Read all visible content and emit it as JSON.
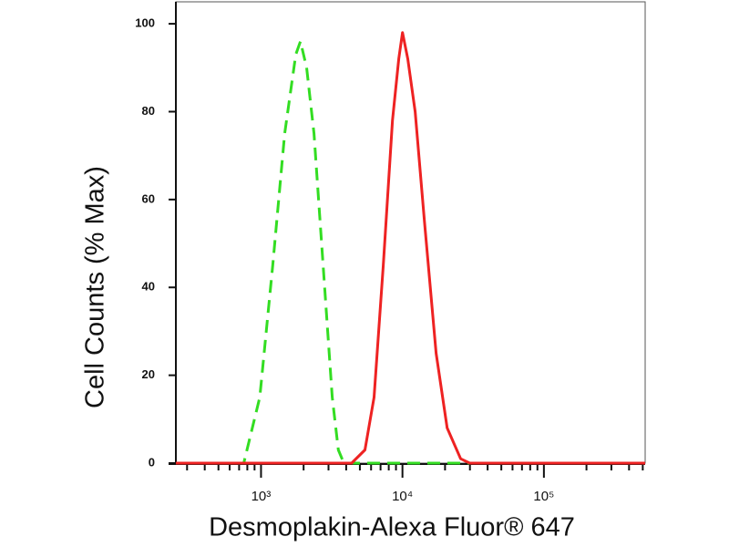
{
  "chart_data": {
    "type": "histogram-overlay",
    "x_label": "Desmoplakin-Alexa Fluor® 647",
    "y_label": "Cell Counts (% Max)",
    "xscale": "log",
    "xlim": [
      250,
      520000
    ],
    "ylim": [
      0,
      105
    ],
    "xticks": [
      {
        "value": 1000,
        "label": "10³"
      },
      {
        "value": 10000,
        "label": "10⁴"
      },
      {
        "value": 100000,
        "label": "10⁵"
      }
    ],
    "xminorticks": [
      300,
      400,
      500,
      600,
      700,
      800,
      900,
      2000,
      3000,
      4000,
      5000,
      6000,
      7000,
      8000,
      9000,
      20000,
      30000,
      40000,
      50000,
      60000,
      70000,
      80000,
      90000,
      200000,
      300000,
      400000,
      500000
    ],
    "yticks": [
      0,
      20,
      40,
      60,
      80,
      100
    ],
    "grid": false,
    "series": [
      {
        "color": "#33dd22",
        "dash": true,
        "x": [
          250,
          755,
          980,
          1210,
          1470,
          1760,
          1900,
          2100,
          2370,
          2750,
          3190,
          3520,
          3850,
          520000
        ],
        "values": [
          0,
          0,
          15,
          45,
          75,
          93,
          96,
          90,
          75,
          45,
          15,
          3,
          0,
          0
        ]
      },
      {
        "color": "#ee2222",
        "dash": false,
        "x": [
          250,
          4370,
          5430,
          6300,
          7320,
          8500,
          9420,
          10000,
          10900,
          12300,
          14300,
          17300,
          20700,
          25800,
          29900,
          520000
        ],
        "values": [
          0,
          0,
          3,
          15,
          45,
          78,
          92,
          98,
          92,
          80,
          55,
          25,
          8,
          1,
          0,
          0
        ]
      }
    ]
  }
}
